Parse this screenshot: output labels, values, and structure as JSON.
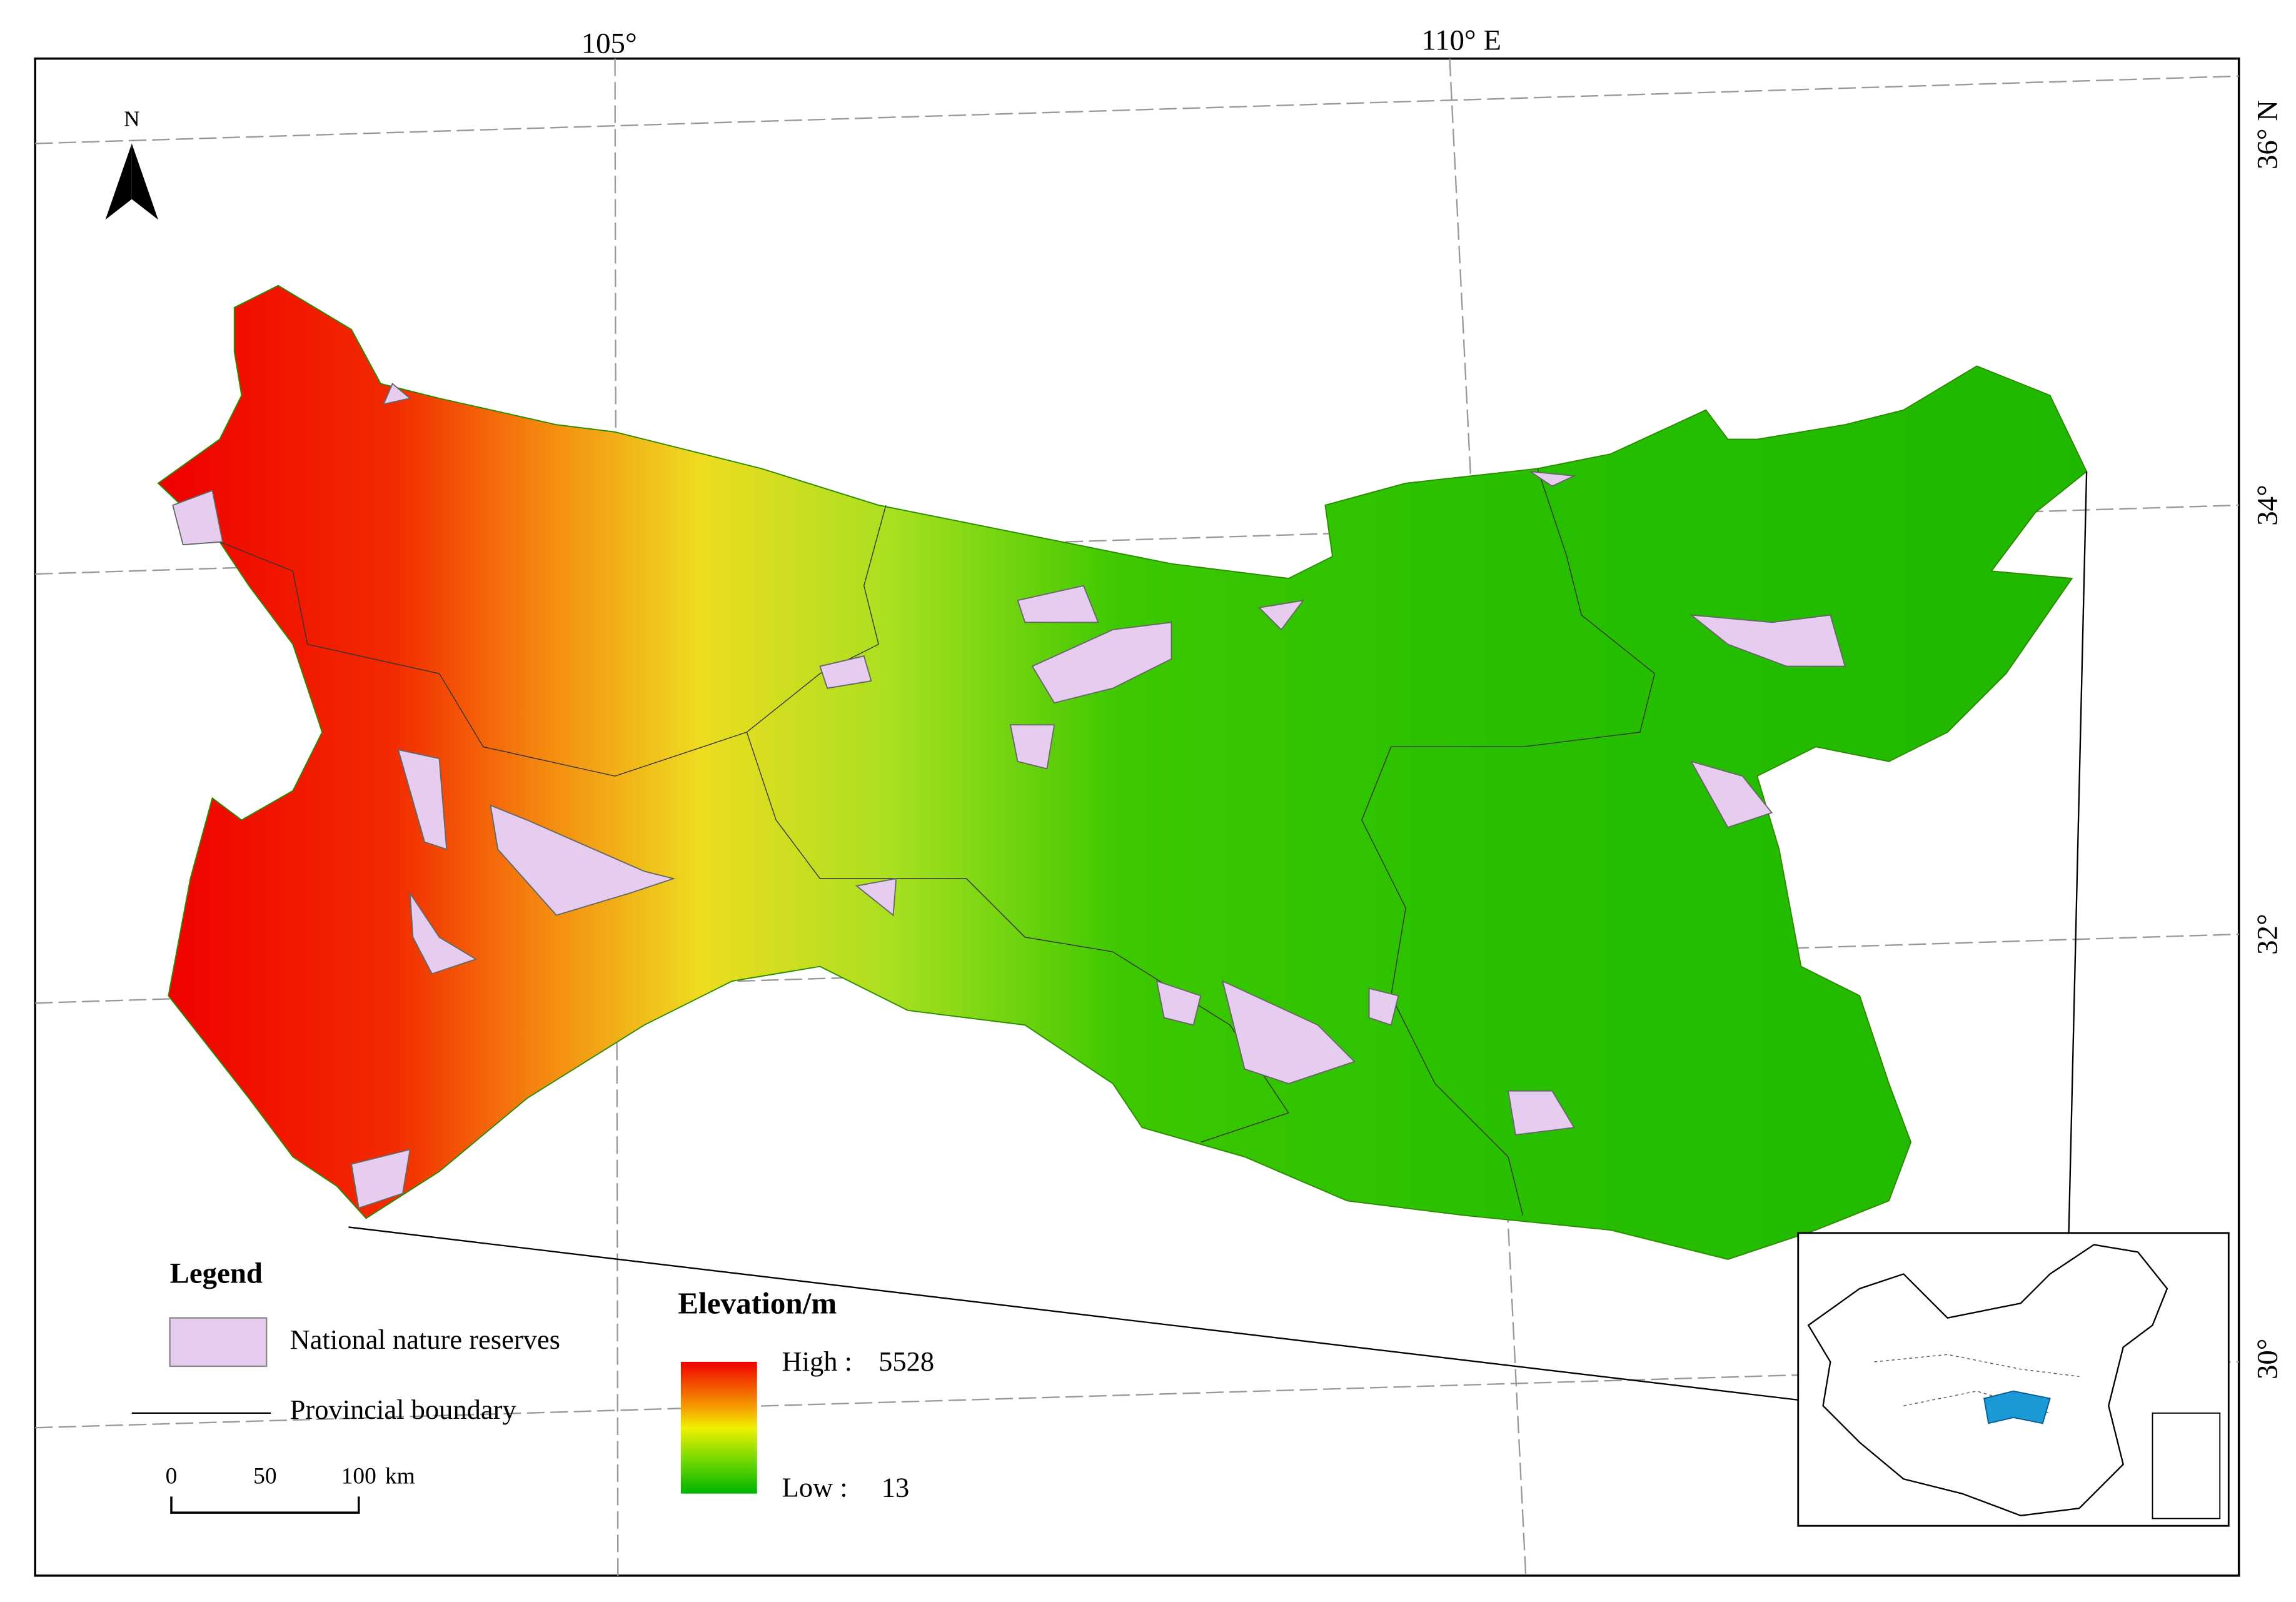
{
  "north_arrow": "N",
  "graticule": {
    "top": [
      "105°",
      "110° E"
    ],
    "right": [
      "36° N",
      "34°",
      "32°",
      "30°"
    ]
  },
  "legend": {
    "title": "Legend",
    "items": [
      "National nature reserves",
      "Provincial boundary"
    ]
  },
  "elevation": {
    "title": "Elevation/m",
    "high_label": "High :",
    "high": 5528,
    "low_label": "Low :",
    "low": 13
  },
  "scale_bar": {
    "ticks": [
      0,
      50,
      100
    ],
    "unit": "km"
  }
}
